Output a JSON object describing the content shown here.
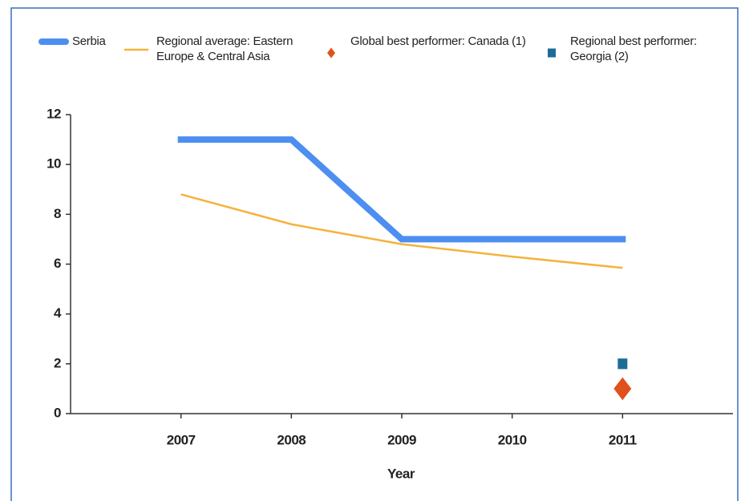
{
  "chart_data": {
    "type": "line",
    "x_label": "Year",
    "x": [
      2007,
      2008,
      2009,
      2010,
      2011
    ],
    "xlim": [
      2006,
      2012
    ],
    "xticks": [
      2007,
      2008,
      2009,
      2010,
      2011
    ],
    "ylim": [
      0,
      12
    ],
    "yticks": [
      0,
      2,
      4,
      6,
      8,
      10,
      12
    ],
    "series": [
      {
        "name": "Serbia",
        "color": "#4d8ff0",
        "values": [
          11,
          11,
          7,
          7,
          7
        ]
      },
      {
        "name": "Regional average: Eastern Europe & Central Asia",
        "color": "#f5b23c",
        "values": [
          8.8,
          7.6,
          6.8,
          6.3,
          5.85
        ]
      },
      {
        "name": "Global best performer: Canada (1)",
        "color": "#e0521b",
        "marker": "diamond",
        "x": [
          2011
        ],
        "values": [
          1
        ]
      },
      {
        "name": "Regional best performer: Georgia (2)",
        "color": "#1d6c96",
        "marker": "square",
        "x": [
          2011
        ],
        "values": [
          2
        ]
      }
    ]
  }
}
